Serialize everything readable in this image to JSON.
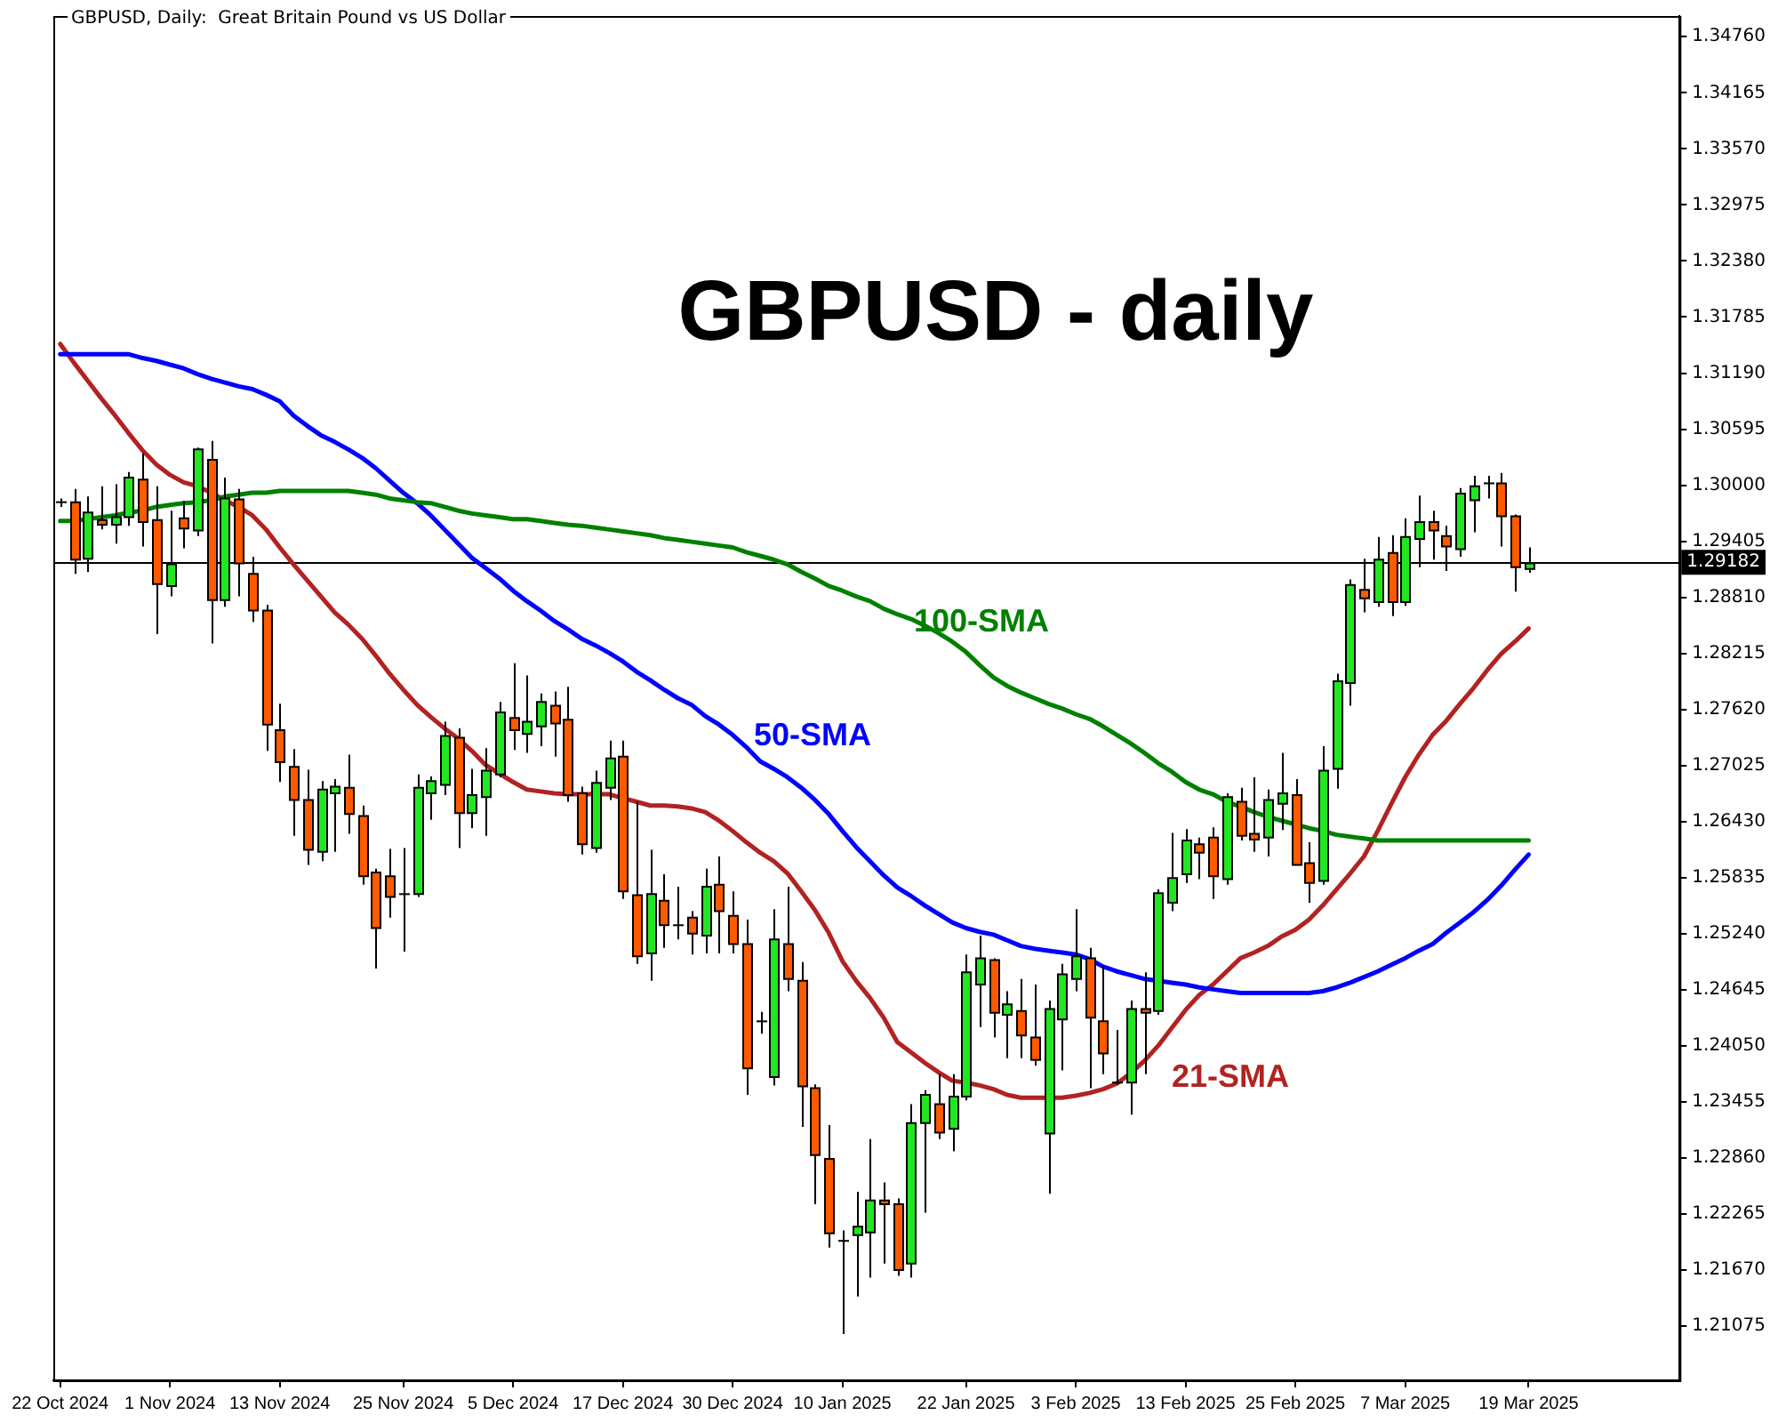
{
  "chart_data": {
    "type": "candlestick",
    "title": "GBPUSD - daily",
    "subtitle": "GBPUSD, Daily:  Great Britain Pound vs US Dollar",
    "categories": [
      "22 Oct 2024",
      null,
      null,
      null,
      null,
      null,
      null,
      null,
      "1 Nov 2024",
      null,
      null,
      null,
      null,
      null,
      null,
      null,
      "13 Nov 2024",
      null,
      null,
      null,
      null,
      null,
      null,
      null,
      null,
      "25 Nov 2024",
      null,
      null,
      null,
      null,
      null,
      null,
      null,
      "5 Dec 2024",
      null,
      null,
      null,
      null,
      null,
      null,
      null,
      "17 Dec 2024",
      null,
      null,
      null,
      null,
      null,
      null,
      null,
      "30 Dec 2024",
      null,
      null,
      null,
      null,
      null,
      null,
      null,
      "10 Jan 2025",
      null,
      null,
      null,
      null,
      null,
      null,
      null,
      null,
      "22 Jan 2025",
      null,
      null,
      null,
      null,
      null,
      null,
      null,
      "3 Feb 2025",
      null,
      null,
      null,
      null,
      null,
      null,
      null,
      "13 Feb 2025",
      null,
      null,
      null,
      null,
      null,
      null,
      null,
      "25 Feb 2025",
      null,
      null,
      null,
      null,
      null,
      null,
      null,
      "7 Mar 2025",
      null,
      null,
      null,
      null,
      null,
      null,
      null,
      null,
      "19 Mar 2025"
    ],
    "ohlc": [
      [
        1.2982,
        1.2986,
        1.2977,
        1.2982
      ],
      [
        1.2982,
        1.2996,
        1.2906,
        1.2921
      ],
      [
        1.2922,
        1.2988,
        1.2908,
        1.2971
      ],
      [
        1.2963,
        1.2999,
        1.2953,
        1.2958
      ],
      [
        1.2958,
        1.3001,
        1.2938,
        1.2966
      ],
      [
        1.2966,
        1.3014,
        1.2957,
        1.3008
      ],
      [
        1.3006,
        1.3034,
        1.2935,
        1.2961
      ],
      [
        1.2963,
        1.2999,
        1.2842,
        1.2895
      ],
      [
        1.2893,
        1.2973,
        1.2882,
        1.2916
      ],
      [
        1.2965,
        1.2983,
        1.2933,
        1.2954
      ],
      [
        1.2952,
        1.304,
        1.2946,
        1.3038
      ],
      [
        1.3027,
        1.3047,
        1.2832,
        1.2878
      ],
      [
        1.2878,
        1.3008,
        1.2871,
        1.2986
      ],
      [
        1.2985,
        1.2996,
        1.2882,
        1.2917
      ],
      [
        1.2906,
        1.2924,
        1.2855,
        1.2867
      ],
      [
        1.2867,
        1.2873,
        1.2718,
        1.2746
      ],
      [
        1.274,
        1.2768,
        1.2685,
        1.2706
      ],
      [
        1.2701,
        1.272,
        1.2628,
        1.2666
      ],
      [
        1.2666,
        1.2698,
        1.2597,
        1.2613
      ],
      [
        1.2611,
        1.2686,
        1.2601,
        1.2677
      ],
      [
        1.2673,
        1.2688,
        1.2611,
        1.268
      ],
      [
        1.2679,
        1.2714,
        1.263,
        1.2651
      ],
      [
        1.2649,
        1.266,
        1.2576,
        1.2585
      ],
      [
        1.2589,
        1.2593,
        1.2487,
        1.253
      ],
      [
        1.2585,
        1.2614,
        1.2541,
        1.2563
      ],
      [
        1.2566,
        1.2615,
        1.2505,
        1.2566
      ],
      [
        1.2566,
        1.2693,
        1.2563,
        1.2679
      ],
      [
        1.2673,
        1.2691,
        1.2645,
        1.2686
      ],
      [
        1.2682,
        1.2749,
        1.2671,
        1.2734
      ],
      [
        1.2732,
        1.2742,
        1.2615,
        1.2652
      ],
      [
        1.2652,
        1.2699,
        1.2636,
        1.2671
      ],
      [
        1.2669,
        1.2721,
        1.2628,
        1.2697
      ],
      [
        1.2693,
        1.277,
        1.269,
        1.2759
      ],
      [
        1.2753,
        1.2811,
        1.2719,
        1.274
      ],
      [
        1.2736,
        1.2798,
        1.2716,
        1.2749
      ],
      [
        1.2744,
        1.2779,
        1.2723,
        1.277
      ],
      [
        1.2766,
        1.2781,
        1.2712,
        1.2747
      ],
      [
        1.2751,
        1.2786,
        1.2664,
        1.2671
      ],
      [
        1.2673,
        1.268,
        1.2608,
        1.2619
      ],
      [
        1.2615,
        1.2697,
        1.261,
        1.2684
      ],
      [
        1.2679,
        1.2729,
        1.2666,
        1.271
      ],
      [
        1.2712,
        1.2729,
        1.2561,
        1.2569
      ],
      [
        1.2565,
        1.2664,
        1.2492,
        1.25
      ],
      [
        1.2503,
        1.2613,
        1.2474,
        1.2566
      ],
      [
        1.2559,
        1.2587,
        1.2509,
        1.2533
      ],
      [
        1.2533,
        1.2574,
        1.2518,
        1.2533
      ],
      [
        1.2541,
        1.2548,
        1.2502,
        1.2524
      ],
      [
        1.2522,
        1.2593,
        1.2503,
        1.2574
      ],
      [
        1.2576,
        1.2606,
        1.2503,
        1.2548
      ],
      [
        1.2543,
        1.2569,
        1.2503,
        1.2513
      ],
      [
        1.2513,
        1.2539,
        1.2353,
        1.2381
      ],
      [
        1.2431,
        1.2441,
        1.2418,
        1.2431
      ],
      [
        1.2372,
        1.255,
        1.2363,
        1.2518
      ],
      [
        1.2513,
        1.2574,
        1.2463,
        1.2476
      ],
      [
        1.2474,
        1.2494,
        1.2319,
        1.2362
      ],
      [
        1.236,
        1.2364,
        1.2237,
        1.2289
      ],
      [
        1.2285,
        1.2321,
        1.2191,
        1.2206
      ],
      [
        1.2198,
        1.2209,
        1.2099,
        1.2198
      ],
      [
        1.2204,
        1.225,
        1.2139,
        1.2213
      ],
      [
        1.2207,
        1.2306,
        1.2159,
        1.2241
      ],
      [
        1.2241,
        1.226,
        1.2174,
        1.2237
      ],
      [
        1.2237,
        1.2243,
        1.2161,
        1.2167
      ],
      [
        1.2174,
        1.2343,
        1.2159,
        1.2323
      ],
      [
        1.2323,
        1.2358,
        1.2228,
        1.2353
      ],
      [
        1.2343,
        1.2375,
        1.2306,
        1.2313
      ],
      [
        1.2317,
        1.2375,
        1.2293,
        1.2351
      ],
      [
        1.2351,
        1.2502,
        1.2347,
        1.2483
      ],
      [
        1.247,
        1.2522,
        1.2425,
        1.2498
      ],
      [
        1.2496,
        1.2498,
        1.2414,
        1.244
      ],
      [
        1.2438,
        1.2463,
        1.2392,
        1.2449
      ],
      [
        1.2442,
        1.2476,
        1.2392,
        1.2416
      ],
      [
        1.2414,
        1.247,
        1.2384,
        1.239
      ],
      [
        1.2312,
        1.2453,
        1.2248,
        1.2444
      ],
      [
        1.2433,
        1.2492,
        1.2379,
        1.2481
      ],
      [
        1.2476,
        1.255,
        1.2463,
        1.25
      ],
      [
        1.2498,
        1.2509,
        1.236,
        1.2435
      ],
      [
        1.2431,
        1.249,
        1.2375,
        1.2397
      ],
      [
        1.2366,
        1.2422,
        1.2364,
        1.2366
      ],
      [
        1.2366,
        1.2453,
        1.2332,
        1.2444
      ],
      [
        1.2444,
        1.2483,
        1.2375,
        1.244
      ],
      [
        1.2442,
        1.2571,
        1.2438,
        1.2567
      ],
      [
        1.2557,
        1.2631,
        1.2548,
        1.2583
      ],
      [
        1.2587,
        1.2635,
        1.2578,
        1.2623
      ],
      [
        1.2619,
        1.2626,
        1.2582,
        1.261
      ],
      [
        1.2626,
        1.2637,
        1.2561,
        1.2585
      ],
      [
        1.2582,
        1.2673,
        1.2576,
        1.2669
      ],
      [
        1.2664,
        1.2679,
        1.2623,
        1.2628
      ],
      [
        1.263,
        1.269,
        1.2611,
        1.2624
      ],
      [
        1.2626,
        1.2677,
        1.2606,
        1.2666
      ],
      [
        1.2662,
        1.2716,
        1.2634,
        1.2673
      ],
      [
        1.2671,
        1.2688,
        1.2597,
        1.2597
      ],
      [
        1.2599,
        1.2621,
        1.2557,
        1.2578
      ],
      [
        1.258,
        1.2723,
        1.2576,
        1.2697
      ],
      [
        1.2699,
        1.28,
        1.2678,
        1.2792
      ],
      [
        1.279,
        1.29,
        1.2766,
        1.2894
      ],
      [
        1.2889,
        1.2922,
        1.2865,
        1.288
      ],
      [
        1.2876,
        1.2945,
        1.2871,
        1.2921
      ],
      [
        1.2928,
        1.2947,
        1.2861,
        1.2876
      ],
      [
        1.2876,
        1.2965,
        1.2872,
        1.2945
      ],
      [
        1.2943,
        1.2989,
        1.2913,
        1.2961
      ],
      [
        1.2961,
        1.2973,
        1.2921,
        1.2952
      ],
      [
        1.2946,
        1.2957,
        1.2909,
        1.2935
      ],
      [
        1.2932,
        1.2997,
        1.2924,
        1.2991
      ],
      [
        1.2984,
        1.301,
        1.295,
        1.2999
      ],
      [
        1.3002,
        1.301,
        1.2986,
        1.3002
      ],
      [
        1.3002,
        1.3013,
        1.2935,
        1.2967
      ],
      [
        1.2967,
        1.2969,
        1.2887,
        1.2913
      ],
      [
        1.2911,
        1.2934,
        1.2907,
        1.2917
      ]
    ],
    "colors": [
      "#000000",
      "#ff5a00",
      "#22e622",
      "#ff5a00",
      "#22e622",
      "#22e622",
      "#ff5a00",
      "#ff5a00",
      "#22e622",
      "#ff5a00",
      "#22e622",
      "#ff5a00",
      "#22e622",
      "#ff5a00",
      "#ff5a00",
      "#ff5a00",
      "#ff5a00",
      "#ff5a00",
      "#ff5a00",
      "#22e622",
      "#22e622",
      "#ff5a00",
      "#ff5a00",
      "#ff5a00",
      "#ff5a00",
      "#000000",
      "#22e622",
      "#22e622",
      "#22e622",
      "#ff5a00",
      "#22e622",
      "#22e622",
      "#22e622",
      "#ff5a00",
      "#22e622",
      "#22e622",
      "#ff5a00",
      "#ff5a00",
      "#ff5a00",
      "#22e622",
      "#22e622",
      "#ff5a00",
      "#ff5a00",
      "#22e622",
      "#ff5a00",
      "#000000",
      "#ff5a00",
      "#22e622",
      "#ff5a00",
      "#ff5a00",
      "#ff5a00",
      "#000000",
      "#22e622",
      "#ff5a00",
      "#ff5a00",
      "#ff5a00",
      "#ff5a00",
      "#000000",
      "#22e622",
      "#22e622",
      "#ff5a00",
      "#ff5a00",
      "#22e622",
      "#22e622",
      "#ff5a00",
      "#22e622",
      "#22e622",
      "#22e622",
      "#ff5a00",
      "#22e622",
      "#ff5a00",
      "#ff5a00",
      "#22e622",
      "#22e622",
      "#22e622",
      "#ff5a00",
      "#ff5a00",
      "#000000",
      "#22e622",
      "#ff5a00",
      "#22e622",
      "#22e622",
      "#22e622",
      "#ff5a00",
      "#ff5a00",
      "#22e622",
      "#ff5a00",
      "#ff5a00",
      "#22e622",
      "#22e622",
      "#ff5a00",
      "#ff5a00",
      "#22e622",
      "#22e622",
      "#22e622",
      "#ff5a00",
      "#22e622",
      "#ff5a00",
      "#22e622",
      "#22e622",
      "#ff5a00",
      "#ff5a00",
      "#22e622",
      "#22e622",
      "#000000",
      "#ff5a00",
      "#ff5a00",
      "#22e622"
    ],
    "series": [
      {
        "name": "100-SMA",
        "type": "line",
        "color": "#008000",
        "values": [
          1.2962,
          1.2962,
          1.2964,
          1.2966,
          1.2968,
          1.2971,
          1.2973,
          1.2977,
          1.2979,
          1.2981,
          1.2982,
          1.2984,
          1.2988,
          1.299,
          1.2992,
          1.2992,
          1.2994,
          1.2994,
          1.2994,
          1.2994,
          1.2994,
          1.2994,
          1.2992,
          1.299,
          1.2986,
          1.2984,
          1.2982,
          1.2981,
          1.2977,
          1.2973,
          1.297,
          1.2968,
          1.2966,
          1.2964,
          1.2964,
          1.2962,
          1.296,
          1.2958,
          1.2957,
          1.2955,
          1.2953,
          1.2951,
          1.2949,
          1.2947,
          1.2944,
          1.2942,
          1.294,
          1.2938,
          1.2936,
          1.2934,
          1.2929,
          1.2925,
          1.2921,
          1.2916,
          1.2908,
          1.2901,
          1.2893,
          1.2888,
          1.2882,
          1.2877,
          1.2869,
          1.2863,
          1.2858,
          1.2851,
          1.2843,
          1.2834,
          1.2823,
          1.2809,
          1.2796,
          1.2787,
          1.278,
          1.2774,
          1.2768,
          1.2763,
          1.2757,
          1.2752,
          1.2744,
          1.2735,
          1.2726,
          1.2716,
          1.2705,
          1.2696,
          1.2685,
          1.2677,
          1.2672,
          1.2664,
          1.2659,
          1.2653,
          1.2648,
          1.2644,
          1.264,
          1.2636,
          1.2633,
          1.2629,
          1.2627,
          1.2625,
          1.2623,
          1.2623,
          1.2623,
          1.2623,
          1.2623,
          1.2623,
          1.2623,
          1.2623,
          1.2623,
          1.2623,
          1.2623,
          1.2623
        ]
      },
      {
        "name": "50-SMA",
        "type": "line",
        "color": "#0000ff",
        "values": [
          1.3139,
          1.3139,
          1.3139,
          1.3139,
          1.3139,
          1.3139,
          1.3135,
          1.3132,
          1.3128,
          1.3124,
          1.3118,
          1.3113,
          1.3109,
          1.3105,
          1.3102,
          1.3096,
          1.3089,
          1.3074,
          1.3063,
          1.3053,
          1.3046,
          1.3038,
          1.3029,
          1.3018,
          1.3005,
          1.2992,
          1.2981,
          1.2968,
          1.2953,
          1.2938,
          1.2923,
          1.2912,
          1.2901,
          1.2888,
          1.2877,
          1.2867,
          1.2856,
          1.2847,
          1.2837,
          1.283,
          1.2822,
          1.2813,
          1.2802,
          1.2793,
          1.2783,
          1.2774,
          1.2767,
          1.2755,
          1.2746,
          1.2735,
          1.2722,
          1.2707,
          1.2699,
          1.269,
          1.2679,
          1.2666,
          1.2651,
          1.2633,
          1.2616,
          1.2601,
          1.2586,
          1.2573,
          1.2564,
          1.2554,
          1.2545,
          1.2536,
          1.253,
          1.2526,
          1.2523,
          1.2517,
          1.2511,
          1.2508,
          1.2506,
          1.2504,
          1.2502,
          1.2497,
          1.2489,
          1.2484,
          1.248,
          1.2476,
          1.2474,
          1.2472,
          1.247,
          1.2467,
          1.2465,
          1.2463,
          1.2461,
          1.2461,
          1.2461,
          1.2461,
          1.2461,
          1.2461,
          1.2463,
          1.2467,
          1.2472,
          1.2478,
          1.2484,
          1.2491,
          1.2498,
          1.2506,
          1.2513,
          1.2525,
          1.2536,
          1.2547,
          1.256,
          1.2575,
          1.2592,
          1.2608
        ]
      },
      {
        "name": "21-SMA",
        "type": "line",
        "color": "#b22222",
        "values": [
          1.315,
          1.313,
          1.3111,
          1.3092,
          1.3074,
          1.3055,
          1.3037,
          1.3022,
          1.3011,
          1.3003,
          1.2999,
          1.2992,
          1.2984,
          1.2977,
          1.2968,
          1.2953,
          1.2934,
          1.2916,
          1.2899,
          1.2882,
          1.2865,
          1.2852,
          1.2837,
          1.2819,
          1.28,
          1.2783,
          1.2767,
          1.2754,
          1.2742,
          1.2731,
          1.2718,
          1.2703,
          1.2694,
          1.2685,
          1.2677,
          1.2675,
          1.2673,
          1.2672,
          1.2672,
          1.2672,
          1.2672,
          1.2668,
          1.2664,
          1.266,
          1.266,
          1.2659,
          1.2657,
          1.2653,
          1.2644,
          1.2633,
          1.2621,
          1.261,
          1.2601,
          1.2588,
          1.2569,
          1.2549,
          1.2525,
          1.2495,
          1.2474,
          1.2456,
          1.2435,
          1.2409,
          1.2398,
          1.2387,
          1.2377,
          1.2368,
          1.2366,
          1.2363,
          1.2359,
          1.2353,
          1.235,
          1.235,
          1.235,
          1.235,
          1.2352,
          1.2355,
          1.2359,
          1.2365,
          1.2376,
          1.2389,
          1.2405,
          1.2424,
          1.2443,
          1.2459,
          1.247,
          1.2484,
          1.2498,
          1.2504,
          1.2511,
          1.2521,
          1.2528,
          1.2539,
          1.2554,
          1.2571,
          1.2588,
          1.2606,
          1.2633,
          1.2662,
          1.269,
          1.2714,
          1.2735,
          1.275,
          1.2768,
          1.2785,
          1.2804,
          1.2821,
          1.2834,
          1.2848
        ]
      }
    ],
    "ylim": [
      1.205,
      1.3498
    ],
    "yticks": [
      1.21075,
      {
        "value": 1.2167,
        "label": "1.21670"
      },
      1.22265,
      {
        "value": 1.2286,
        "label": "1.22860"
      },
      1.23455,
      {
        "value": 1.2405,
        "label": "1.24050"
      },
      1.24645,
      {
        "value": 1.2524,
        "label": "1.25240"
      },
      1.25835,
      {
        "value": 1.2643,
        "label": "1.26430"
      },
      1.27025,
      {
        "value": 1.2762,
        "label": "1.27620"
      },
      1.28215,
      {
        "value": 1.2881,
        "label": "1.28810"
      },
      1.29405,
      {
        "value": 1.3,
        "label": "1.30000"
      },
      1.30595,
      {
        "value": 1.3119,
        "label": "1.31190"
      },
      1.31785,
      {
        "value": 1.3238,
        "label": "1.32380"
      },
      1.32975,
      {
        "value": 1.3357,
        "label": "1.33570"
      },
      1.34165,
      {
        "value": 1.3476,
        "label": "1.34760"
      }
    ],
    "ref_lines": [
      {
        "axis": "y",
        "value": 1.29182,
        "label": "1.29182",
        "color": "#000000"
      }
    ]
  }
}
